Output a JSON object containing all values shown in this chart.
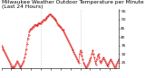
{
  "title": "Milwaukee Weather Outdoor Temperature per Minute (Last 24 Hours)",
  "line_color": "#dd0000",
  "background_color": "#ffffff",
  "grid_color": "#aaaaaa",
  "ylim": [
    22,
    56
  ],
  "yticks": [
    25,
    30,
    35,
    40,
    45,
    50,
    55
  ],
  "title_fontsize": 4.2,
  "tick_fontsize": 3.2,
  "temperatures": [
    35,
    34,
    33,
    32,
    31,
    30,
    29,
    28,
    27,
    26,
    25,
    24,
    23,
    22,
    23,
    22,
    23,
    24,
    25,
    26,
    25,
    24,
    23,
    22,
    23,
    24,
    25,
    26,
    28,
    30,
    33,
    36,
    39,
    41,
    43,
    44,
    45,
    45,
    46,
    46,
    47,
    47,
    47,
    47,
    47,
    48,
    48,
    48,
    48,
    49,
    49,
    50,
    50,
    50,
    51,
    51,
    52,
    52,
    53,
    53,
    53,
    52,
    52,
    51,
    51,
    50,
    50,
    49,
    48,
    47,
    47,
    46,
    46,
    45,
    44,
    44,
    43,
    42,
    41,
    40,
    39,
    38,
    37,
    36,
    35,
    34,
    33,
    32,
    31,
    30,
    29,
    28,
    27,
    26,
    25,
    30,
    32,
    31,
    29,
    27,
    25,
    24,
    23,
    22,
    23,
    24,
    25,
    26,
    27,
    28,
    30,
    32,
    30,
    28,
    26,
    24,
    27,
    29,
    30,
    28,
    26,
    25,
    26,
    27,
    28,
    27,
    26,
    25,
    24,
    23,
    24,
    25,
    26,
    27,
    26,
    25,
    24,
    23,
    22,
    23,
    24,
    25,
    26,
    27
  ]
}
